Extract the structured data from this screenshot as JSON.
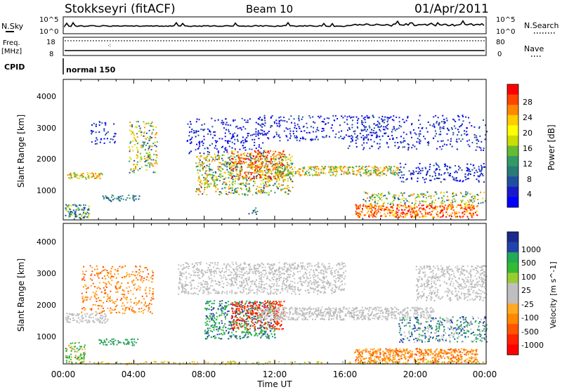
{
  "header": {
    "station": "Stokkseyri (fitACF)",
    "beam": "Beam 10",
    "date": "01/Apr/2011"
  },
  "panels": {
    "nsky": {
      "left_label": "N.Sky",
      "right_label": "N.Search",
      "left_ticks": [
        "10^5",
        "10^0"
      ],
      "right_ticks": [
        "10^5",
        "10^0"
      ]
    },
    "freq": {
      "left_label_1": "Freq.",
      "left_label_2": "[MHz]",
      "right_label": "Nave",
      "left_ticks": [
        "18",
        "8"
      ],
      "right_ticks": [
        "80",
        "0"
      ]
    },
    "cpid": {
      "label": "CPID",
      "program": "normal 150"
    }
  },
  "chart_data": [
    {
      "type": "heatmap",
      "name": "power",
      "ylabel": "Slant Range [km]",
      "ylim": [
        200,
        4600
      ],
      "yticks": [
        "1000",
        "2000",
        "3000",
        "4000"
      ],
      "colorbar_label": "Power [dB]",
      "colorbar_ticks": [
        "28",
        "24",
        "20",
        "16",
        "12",
        "8",
        "4"
      ],
      "colorbar_colors": [
        "#ff0000",
        "#ff4400",
        "#ff8800",
        "#ffcc00",
        "#ffff00",
        "#ccdd00",
        "#66bb33",
        "#339966",
        "#2a7a78",
        "#1f4fa0",
        "#1a1acc",
        "#0000ff"
      ],
      "grid": false
    },
    {
      "type": "heatmap",
      "name": "velocity",
      "ylabel": "Slant Range [km]",
      "ylim": [
        200,
        4600
      ],
      "yticks": [
        "1000",
        "2000",
        "3000",
        "4000"
      ],
      "colorbar_label": "Velocity [m s^-1]",
      "colorbar_ticks": [
        "1000",
        "500",
        "100",
        "25",
        "-25",
        "-100",
        "-500",
        "-1000"
      ],
      "colorbar_colors": [
        "#1a2a8c",
        "#2244aa",
        "#22aa55",
        "#33bb33",
        "#99cc33",
        "#bfbfbf",
        "#bfbfbf",
        "#ffaa22",
        "#ff8800",
        "#ff5500",
        "#ff2200",
        "#ff0000"
      ],
      "grid": false
    }
  ],
  "xaxis": {
    "label": "Time UT",
    "ticks": [
      "00:00",
      "04:00",
      "08:00",
      "12:00",
      "16:00",
      "20:00",
      "00:00"
    ]
  }
}
